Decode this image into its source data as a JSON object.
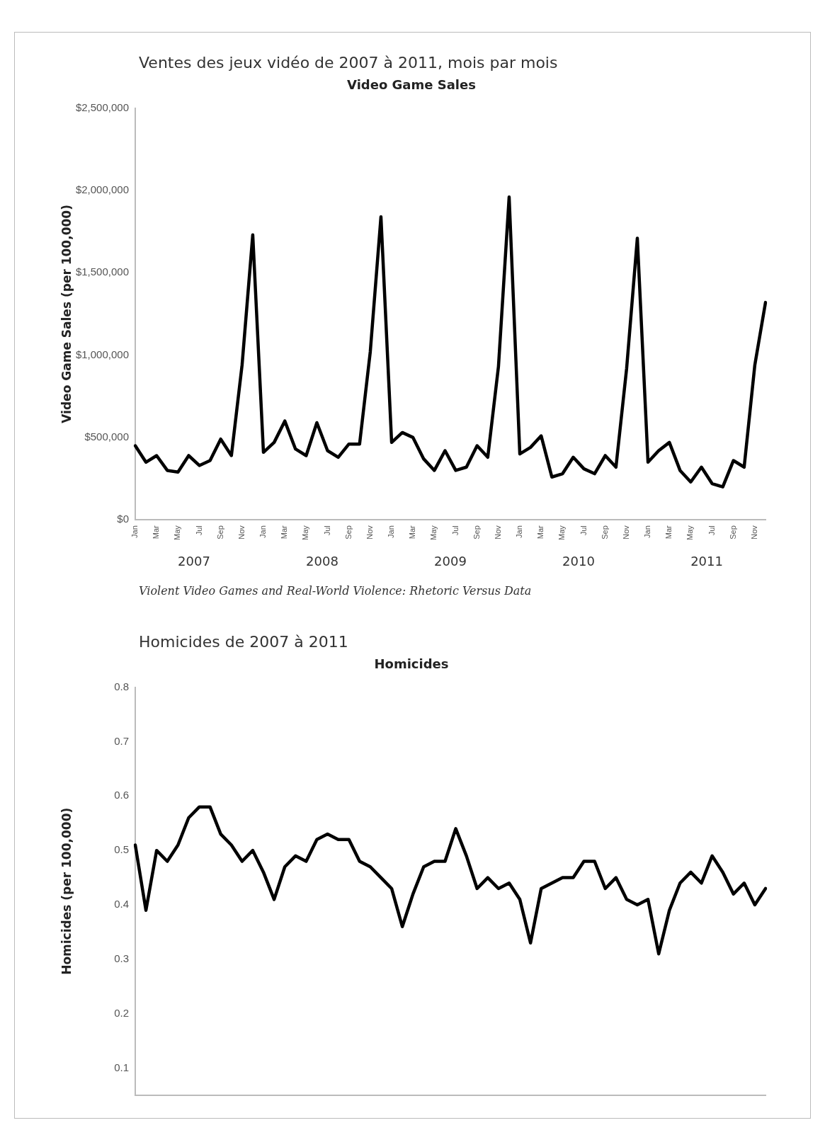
{
  "chart_data": [
    {
      "type": "line",
      "title": "Ventes des jeux vidéo de 2007 à 2011, mois par mois",
      "subtitle": "Video Game Sales",
      "ylabel": "Video Game Sales (per 100,000)",
      "categories": [
        "Jan",
        null,
        "Mar",
        null,
        "May",
        null,
        "Jul",
        null,
        "Sep",
        null,
        "Nov",
        null,
        "Jan",
        null,
        "Mar",
        null,
        "May",
        null,
        "Jul",
        null,
        "Sep",
        null,
        "Nov",
        null,
        "Jan",
        null,
        "Mar",
        null,
        "May",
        null,
        "Jul",
        null,
        "Sep",
        null,
        "Nov",
        null,
        "Jan",
        null,
        "Mar",
        null,
        "May",
        null,
        "Jul",
        null,
        "Sep",
        null,
        "Nov",
        null,
        "Jan",
        null,
        "Mar",
        null,
        "May",
        null,
        "Jul",
        null,
        "Sep",
        null,
        "Nov",
        null
      ],
      "series": [
        {
          "color": "#000000",
          "values": [
            450000,
            350000,
            390000,
            300000,
            290000,
            390000,
            330000,
            360000,
            490000,
            390000,
            940000,
            1730000,
            410000,
            470000,
            600000,
            430000,
            390000,
            590000,
            420000,
            380000,
            460000,
            460000,
            1020000,
            1840000,
            470000,
            530000,
            500000,
            370000,
            300000,
            420000,
            300000,
            320000,
            450000,
            380000,
            930000,
            1960000,
            400000,
            440000,
            510000,
            260000,
            280000,
            380000,
            310000,
            280000,
            390000,
            320000,
            920000,
            1710000,
            350000,
            420000,
            470000,
            300000,
            230000,
            320000,
            220000,
            200000,
            360000,
            320000,
            940000,
            1320000
          ]
        }
      ],
      "ylim": [
        0,
        2500000
      ],
      "yticks": [
        {
          "value": 0,
          "label": "$0"
        },
        {
          "value": 500000,
          "label": "$500,000"
        },
        {
          "value": 1000000,
          "label": "$1,000,000"
        },
        {
          "value": 1500000,
          "label": "$1,500,000"
        },
        {
          "value": 2000000,
          "label": "$2,000,000"
        },
        {
          "value": 2500000,
          "label": "$2,500,000"
        }
      ],
      "grid": false,
      "legend": false,
      "marker": "none",
      "line_style": "solid",
      "annotations": [
        "2007",
        "2008",
        "2009",
        "2010",
        "2011",
        "Violent Video Games and Real-World Violence: Rhetoric Versus Data"
      ]
    },
    {
      "type": "line",
      "title": "Homicides de 2007 à 2011",
      "subtitle": "Homicides",
      "ylabel": "Homicides (per 100,000)",
      "categories": [
        null,
        null,
        null,
        null,
        null,
        null,
        null,
        null,
        null,
        null,
        null,
        null,
        null,
        null,
        null,
        null,
        null,
        null,
        null,
        null,
        null,
        null,
        null,
        null,
        null,
        null,
        null,
        null,
        null,
        null,
        null,
        null,
        null,
        null,
        null,
        null,
        null,
        null,
        null,
        null,
        null,
        null,
        null,
        null,
        null,
        null,
        null,
        null,
        null,
        null,
        null,
        null,
        null,
        null,
        null,
        null,
        null,
        null,
        null,
        null
      ],
      "series": [
        {
          "color": "#000000",
          "values": [
            0.51,
            0.39,
            0.5,
            0.48,
            0.51,
            0.56,
            0.58,
            0.58,
            0.53,
            0.51,
            0.48,
            0.5,
            0.46,
            0.41,
            0.47,
            0.49,
            0.48,
            0.52,
            0.53,
            0.52,
            0.52,
            0.48,
            0.47,
            0.45,
            0.43,
            0.36,
            0.42,
            0.47,
            0.48,
            0.48,
            0.54,
            0.49,
            0.43,
            0.45,
            0.43,
            0.44,
            0.41,
            0.33,
            0.43,
            0.44,
            0.45,
            0.45,
            0.48,
            0.48,
            0.43,
            0.45,
            0.41,
            0.4,
            0.41,
            0.31,
            0.39,
            0.44,
            0.46,
            0.44,
            0.49,
            0.46,
            0.42,
            0.44,
            0.4,
            0.43
          ]
        }
      ],
      "ylim": [
        0.05,
        0.8
      ],
      "yticks": [
        0.1,
        0.2,
        0.3,
        0.4,
        0.5,
        0.6,
        0.7,
        0.8
      ],
      "grid": false,
      "legend": false,
      "marker": "none",
      "line_style": "solid",
      "tick_labels": "y"
    }
  ]
}
